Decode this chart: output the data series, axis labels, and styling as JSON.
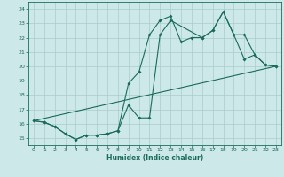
{
  "title": "",
  "xlabel": "Humidex (Indice chaleur)",
  "bg_color": "#cce8e8",
  "line_color": "#1a6b5a",
  "grid_color": "#aacccc",
  "xlim": [
    -0.5,
    23.5
  ],
  "ylim": [
    14.5,
    24.5
  ],
  "xticks": [
    0,
    1,
    2,
    3,
    4,
    5,
    6,
    7,
    8,
    9,
    10,
    11,
    12,
    13,
    14,
    15,
    16,
    17,
    18,
    19,
    20,
    21,
    22,
    23
  ],
  "yticks": [
    15,
    16,
    17,
    18,
    19,
    20,
    21,
    22,
    23,
    24
  ],
  "line1_x": [
    0,
    1,
    2,
    3,
    4,
    5,
    6,
    7,
    8,
    9,
    10,
    11,
    12,
    13,
    14,
    15,
    16,
    17,
    18,
    19,
    20,
    21,
    22,
    23
  ],
  "line1_y": [
    16.2,
    16.1,
    15.8,
    15.3,
    14.9,
    15.2,
    15.2,
    15.3,
    15.5,
    18.8,
    19.6,
    22.2,
    23.2,
    23.5,
    21.7,
    22.0,
    22.0,
    22.5,
    23.8,
    22.2,
    20.5,
    20.8,
    20.1,
    20.0
  ],
  "line2_x": [
    0,
    1,
    2,
    3,
    4,
    5,
    6,
    7,
    8,
    9,
    10,
    11,
    12,
    13,
    16,
    17,
    18,
    19,
    20,
    21,
    22,
    23
  ],
  "line2_y": [
    16.2,
    16.1,
    15.8,
    15.3,
    14.9,
    15.2,
    15.2,
    15.3,
    15.5,
    17.3,
    16.4,
    16.4,
    22.2,
    23.2,
    22.0,
    22.5,
    23.8,
    22.2,
    22.2,
    20.8,
    20.1,
    20.0
  ],
  "line3_x": [
    0,
    23
  ],
  "line3_y": [
    16.2,
    20.0
  ]
}
